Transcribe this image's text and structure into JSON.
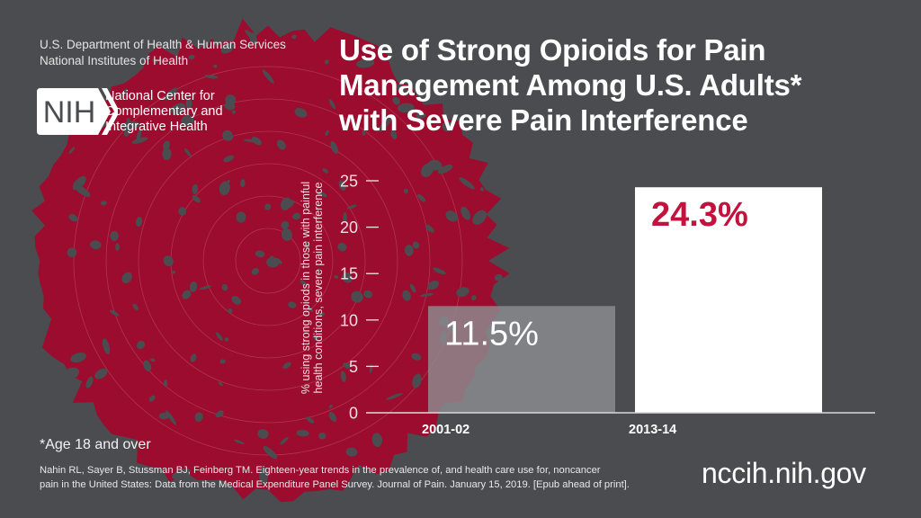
{
  "header": {
    "agency_line1": "U.S. Department of Health & Human Services",
    "agency_line2": "National Institutes of Health",
    "logo_text": "NIH",
    "center_lines": [
      "National Center for",
      "Complementary and",
      "Integrative Health"
    ]
  },
  "colors": {
    "background": "#4b4c50",
    "splatter": "#9b0c2e",
    "accent_red": "#c2123d",
    "bar_2001": "#8d8e92",
    "bar_2013": "#ffffff",
    "text_light": "#ffffff"
  },
  "chart_data": {
    "type": "bar",
    "title": "Use of Strong Opioids for Pain Management Among U.S. Adults* with Severe Pain Interference",
    "title_lines": [
      "Use of Strong Opioids for Pain",
      "Management Among U.S. Adults*",
      "with Severe Pain Interference"
    ],
    "categories": [
      "2001-02",
      "2013-14"
    ],
    "values": [
      11.5,
      24.3
    ],
    "data_labels": [
      "11.5%",
      "24.3%"
    ],
    "xlabel": "",
    "ylabel_lines": [
      "% using strong opiods in those with painful",
      "health conditions, severe pain interference"
    ],
    "ylim": [
      0,
      25
    ],
    "yticks": [
      0,
      5,
      10,
      15,
      20,
      25
    ],
    "grid": false,
    "legend": "none"
  },
  "footer": {
    "footnote": "*Age 18 and over",
    "citation_line1": "Nahin RL, Sayer B, Stussman BJ, Feinberg TM. Eighteen-year trends in the prevalence of, and health care use for, noncancer",
    "citation_line2": "pain in the United States: Data from the Medical Expenditure Panel Survey. Journal of Pain. January 15, 2019. [Epub ahead of print].",
    "website": "nccih.nih.gov"
  }
}
